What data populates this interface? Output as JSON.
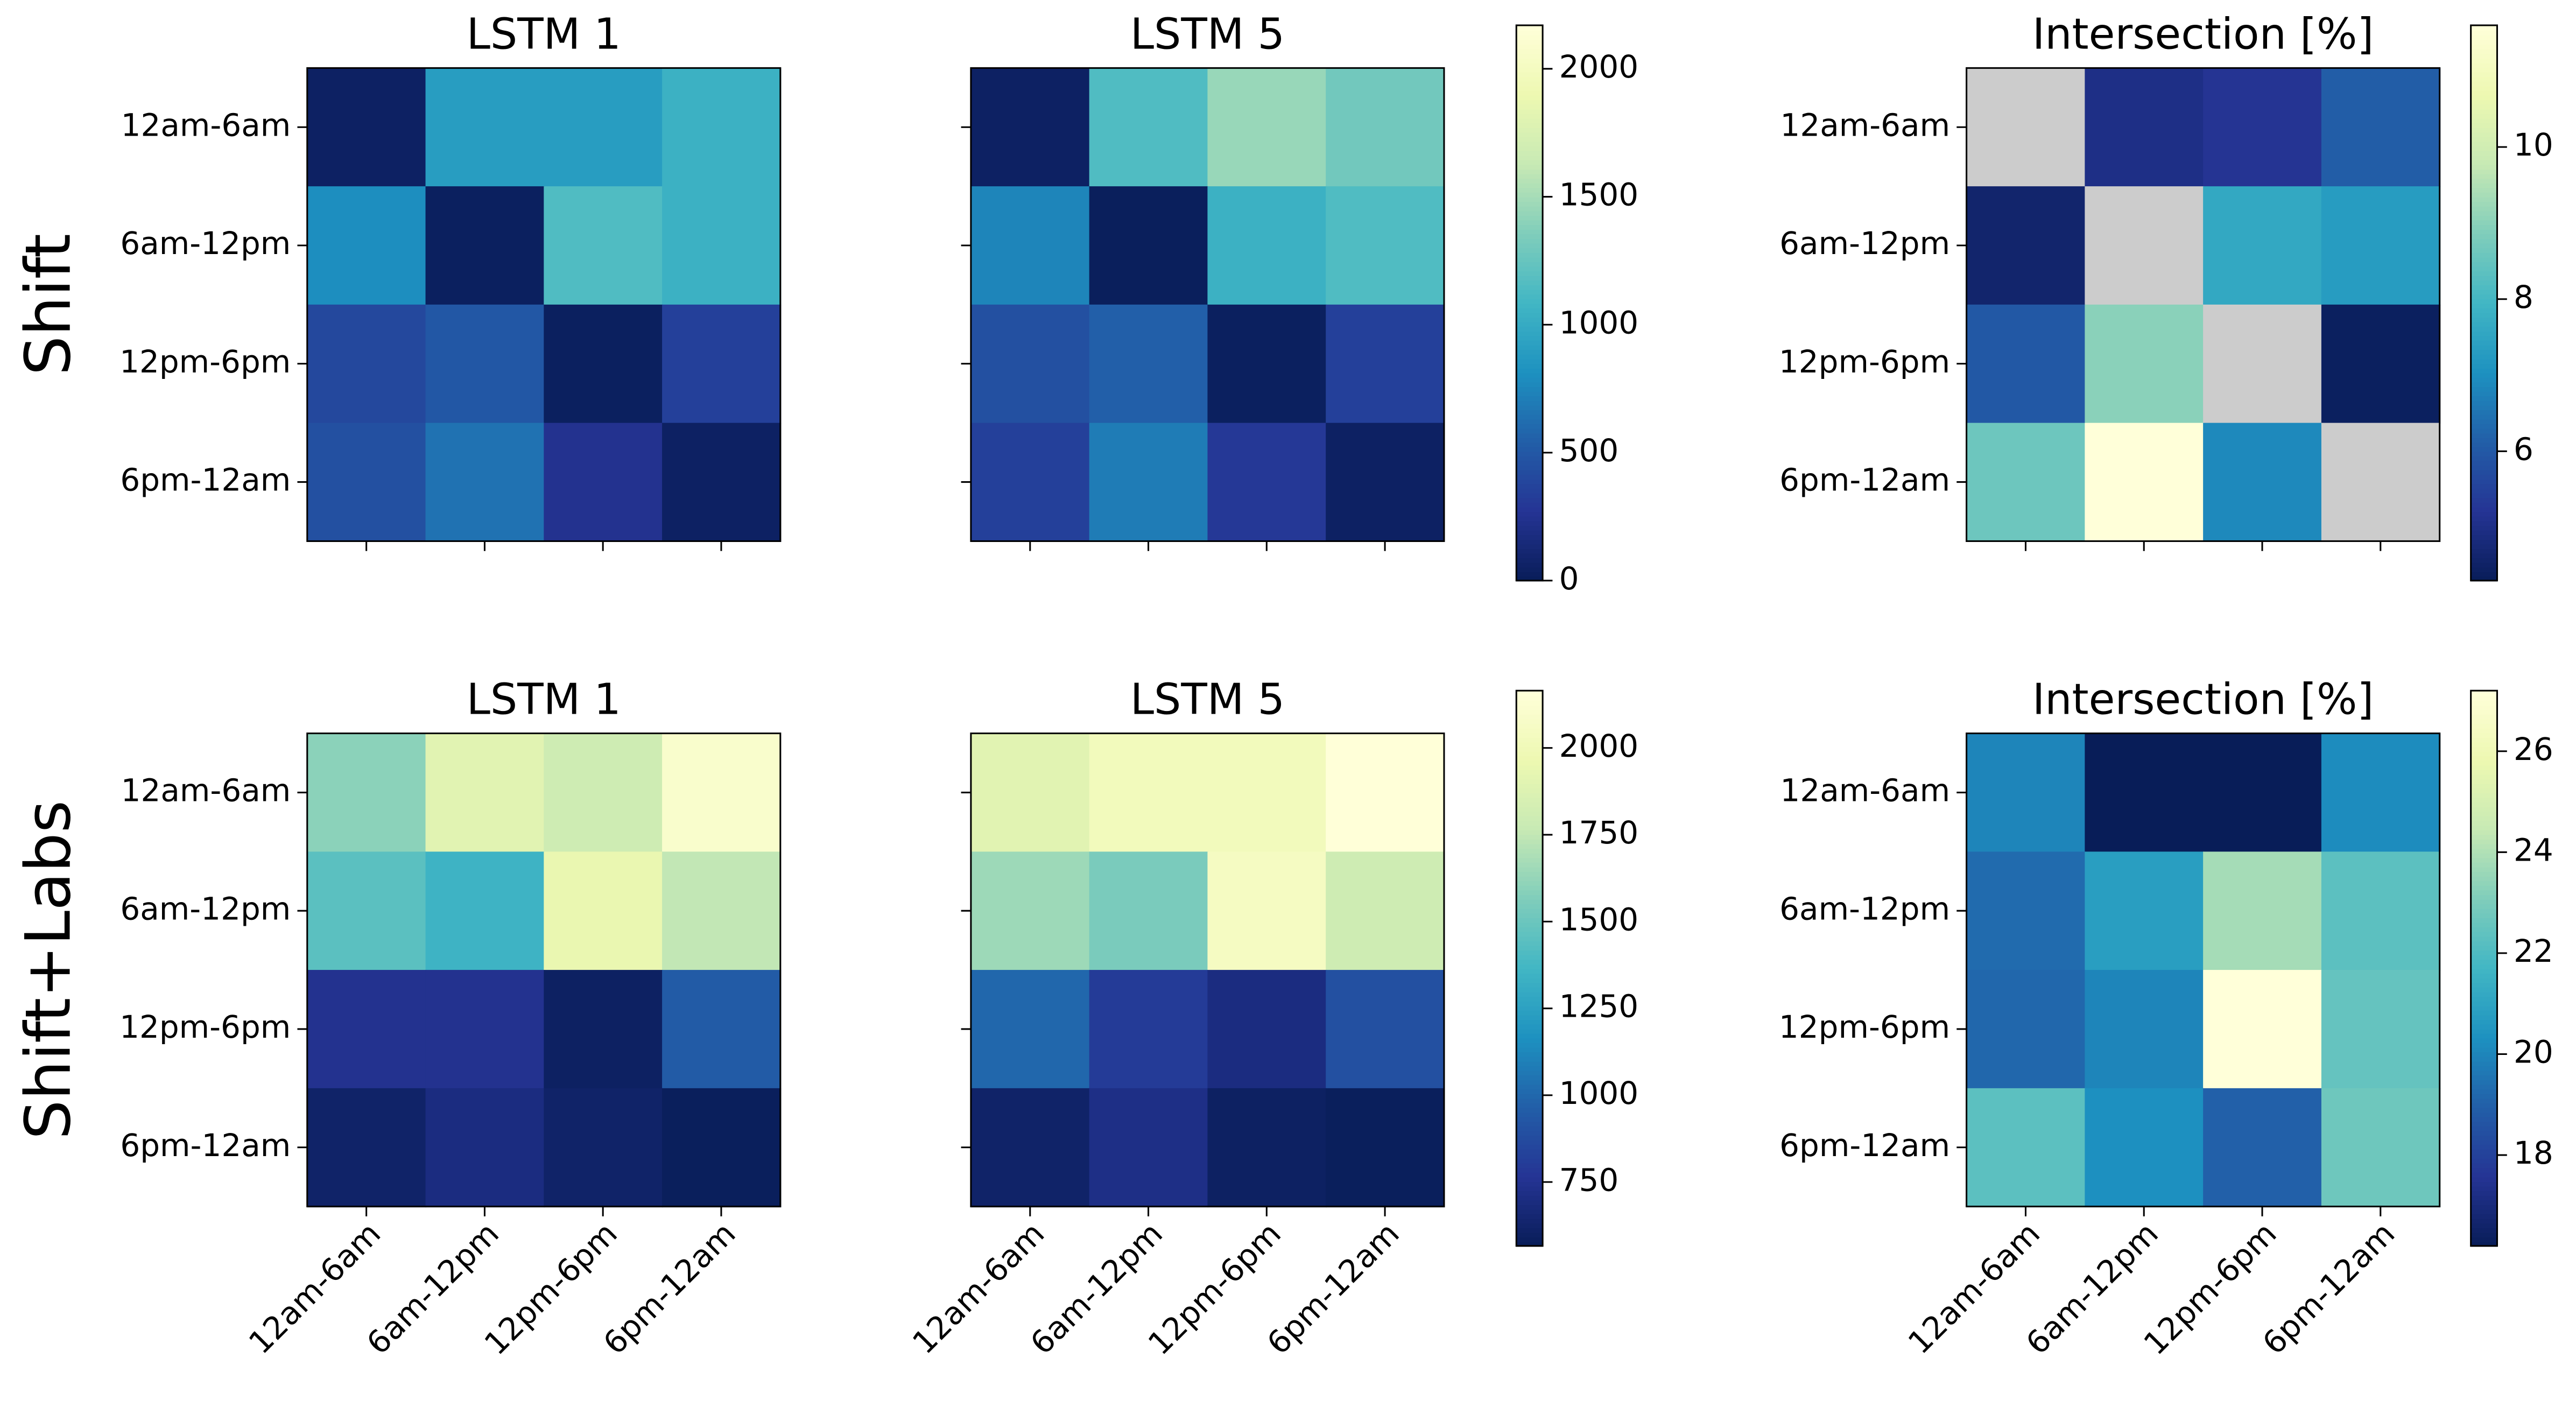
{
  "chart_data": [
    {
      "type": "heatmap",
      "title": "LSTM 1",
      "ylabel": "Shift",
      "ylabels": [
        "12am-6am",
        "6am-12pm",
        "12pm-6pm",
        "6pm-12am"
      ],
      "values": [
        [
          50,
          900,
          900,
          1050
        ],
        [
          800,
          30,
          1150,
          1050
        ],
        [
          400,
          500,
          30,
          350
        ],
        [
          450,
          650,
          250,
          50
        ]
      ],
      "colormap": "YlGnBu",
      "clim": [
        0,
        2170
      ]
    },
    {
      "type": "heatmap",
      "title": "LSTM 5",
      "values": [
        [
          50,
          1150,
          1450,
          1300
        ],
        [
          750,
          20,
          1050,
          1150
        ],
        [
          450,
          550,
          30,
          350
        ],
        [
          350,
          700,
          300,
          50
        ]
      ],
      "colormap": "YlGnBu",
      "clim": [
        0,
        2170
      ],
      "colorbar": true,
      "cticks": [
        0,
        500,
        1000,
        1500,
        2000
      ]
    },
    {
      "type": "heatmap",
      "title": "Intersection [%]",
      "ylabels": [
        "12am-6am",
        "6am-12pm",
        "12pm-6pm",
        "6pm-12am"
      ],
      "values": [
        [
          null,
          5.0,
          5.2,
          6.1
        ],
        [
          4.6,
          null,
          7.6,
          7.3
        ],
        [
          6.0,
          9.0,
          null,
          4.4
        ],
        [
          8.6,
          11.6,
          6.9,
          null
        ]
      ],
      "colormap": "YlGnBu",
      "nan_color": "#cccccc",
      "clim": [
        4.3,
        11.6
      ],
      "colorbar": true,
      "cticks": [
        6,
        8,
        10
      ]
    },
    {
      "type": "heatmap",
      "title": "LSTM 1",
      "ylabel": "Shift+Labs",
      "ylabels": [
        "12am-6am",
        "6am-12pm",
        "12pm-6pm",
        "6pm-12am"
      ],
      "xlabels": [
        "12am-6am",
        "6am-12pm",
        "12pm-6pm",
        "6pm-12am"
      ],
      "values": [
        [
          1600,
          1900,
          1800,
          2100
        ],
        [
          1450,
          1350,
          1950,
          1750
        ],
        [
          750,
          750,
          600,
          950
        ],
        [
          620,
          700,
          620,
          580
        ]
      ],
      "colormap": "YlGnBu",
      "clim": [
        566,
        2165
      ]
    },
    {
      "type": "heatmap",
      "title": "LSTM 5",
      "xlabels": [
        "12am-6am",
        "6am-12pm",
        "12pm-6pm",
        "6pm-12am"
      ],
      "values": [
        [
          1900,
          2020,
          2020,
          2160
        ],
        [
          1650,
          1550,
          2050,
          1800
        ],
        [
          1000,
          800,
          700,
          900
        ],
        [
          620,
          720,
          600,
          580
        ]
      ],
      "colormap": "YlGnBu",
      "clim": [
        566,
        2165
      ],
      "colorbar": true,
      "cticks": [
        750,
        1000,
        1250,
        1500,
        1750,
        2000
      ]
    },
    {
      "type": "heatmap",
      "title": "Intersection [%]",
      "ylabels": [
        "12am-6am",
        "6am-12pm",
        "12pm-6pm",
        "6pm-12am"
      ],
      "xlabels": [
        "12am-6am",
        "6am-12pm",
        "12pm-6pm",
        "6pm-12am"
      ],
      "values": [
        [
          20.0,
          16.2,
          16.2,
          20.2
        ],
        [
          19.3,
          20.8,
          23.8,
          22.3
        ],
        [
          19.2,
          20.0,
          27.2,
          22.5
        ],
        [
          22.3,
          20.3,
          19.0,
          22.7
        ]
      ],
      "colormap": "YlGnBu",
      "clim": [
        16.2,
        27.2
      ],
      "colorbar": true,
      "cticks": [
        18,
        20,
        22,
        24,
        26
      ]
    }
  ]
}
